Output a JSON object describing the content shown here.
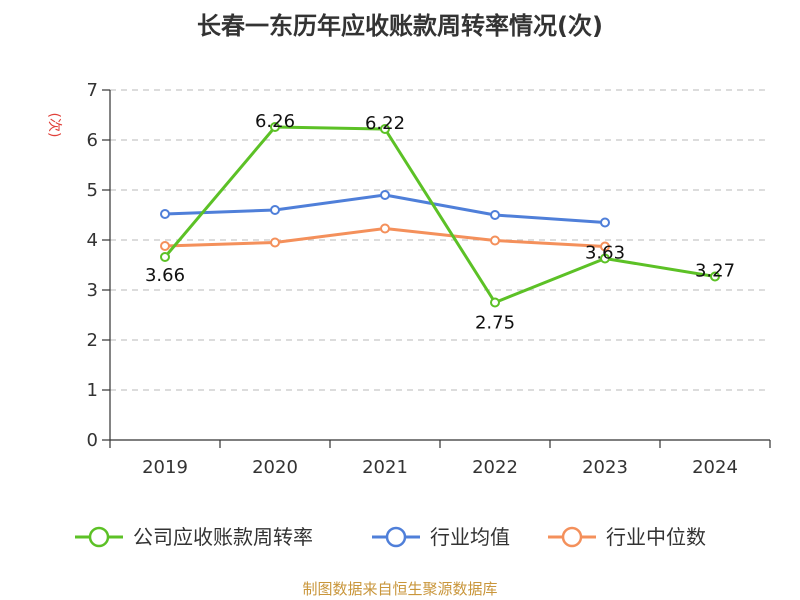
{
  "chart_data": {
    "type": "line",
    "title": "长春一东历年应收账款周转率情况(次)",
    "ylabel": "(次)",
    "xlabel": "",
    "categories": [
      "2019",
      "2020",
      "2021",
      "2022",
      "2023",
      "2024"
    ],
    "ylim": [
      0,
      7
    ],
    "yticks": [
      0,
      1,
      2,
      3,
      4,
      5,
      6,
      7
    ],
    "grid": true,
    "legend_position": "bottom",
    "series": [
      {
        "name": "公司应收账款周转率",
        "color": "#5cc126",
        "values": [
          3.66,
          6.26,
          6.22,
          2.75,
          3.63,
          3.27
        ],
        "labels": [
          "3.66",
          "6.26",
          "6.22",
          "2.75",
          "3.63",
          "3.27"
        ]
      },
      {
        "name": "行业均值",
        "color": "#4f7fd9",
        "values": [
          4.52,
          4.6,
          4.9,
          4.5,
          4.35,
          null
        ]
      },
      {
        "name": "行业中位数",
        "color": "#f4905b",
        "values": [
          3.88,
          3.95,
          4.23,
          3.99,
          3.87,
          null
        ]
      }
    ]
  },
  "source_text": "制图数据来自恒生聚源数据库"
}
